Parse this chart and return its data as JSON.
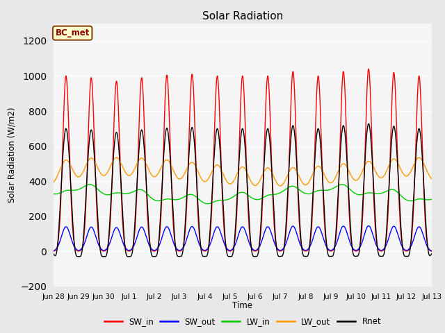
{
  "title": "Solar Radiation",
  "ylabel": "Solar Radiation (W/m2)",
  "xlabel": "Time",
  "ylim": [
    -200,
    1300
  ],
  "yticks": [
    -200,
    0,
    200,
    400,
    600,
    800,
    1000,
    1200
  ],
  "background_color": "#e8e8e8",
  "plot_bg_color": "#f5f5f5",
  "annotation_text": "BC_met",
  "annotation_bg": "#ffffcc",
  "annotation_border": "#8B4513",
  "legend_entries": [
    "SW_in",
    "SW_out",
    "LW_in",
    "LW_out",
    "Rnet"
  ],
  "line_colors": {
    "SW_in": "#ff0000",
    "SW_out": "#0000ff",
    "LW_in": "#00cc00",
    "LW_out": "#ff9900",
    "Rnet": "#000000"
  },
  "num_days": 15,
  "tick_labels": [
    "Jun 28",
    "Jun 29",
    "Jun 30",
    "Jul 1",
    "Jul 2",
    "Jul 3",
    "Jul 4",
    "Jul 5",
    "Jul 6",
    "Jul 7",
    "Jul 8",
    "Jul 9",
    "Jul 10",
    "Jul 11",
    "Jul 12",
    "Jul 13"
  ],
  "sw_in_peaks": [
    1000,
    990,
    970,
    990,
    1005,
    1010,
    1000,
    1000,
    1000,
    1025,
    1000,
    1025,
    1040,
    1020,
    1000
  ]
}
